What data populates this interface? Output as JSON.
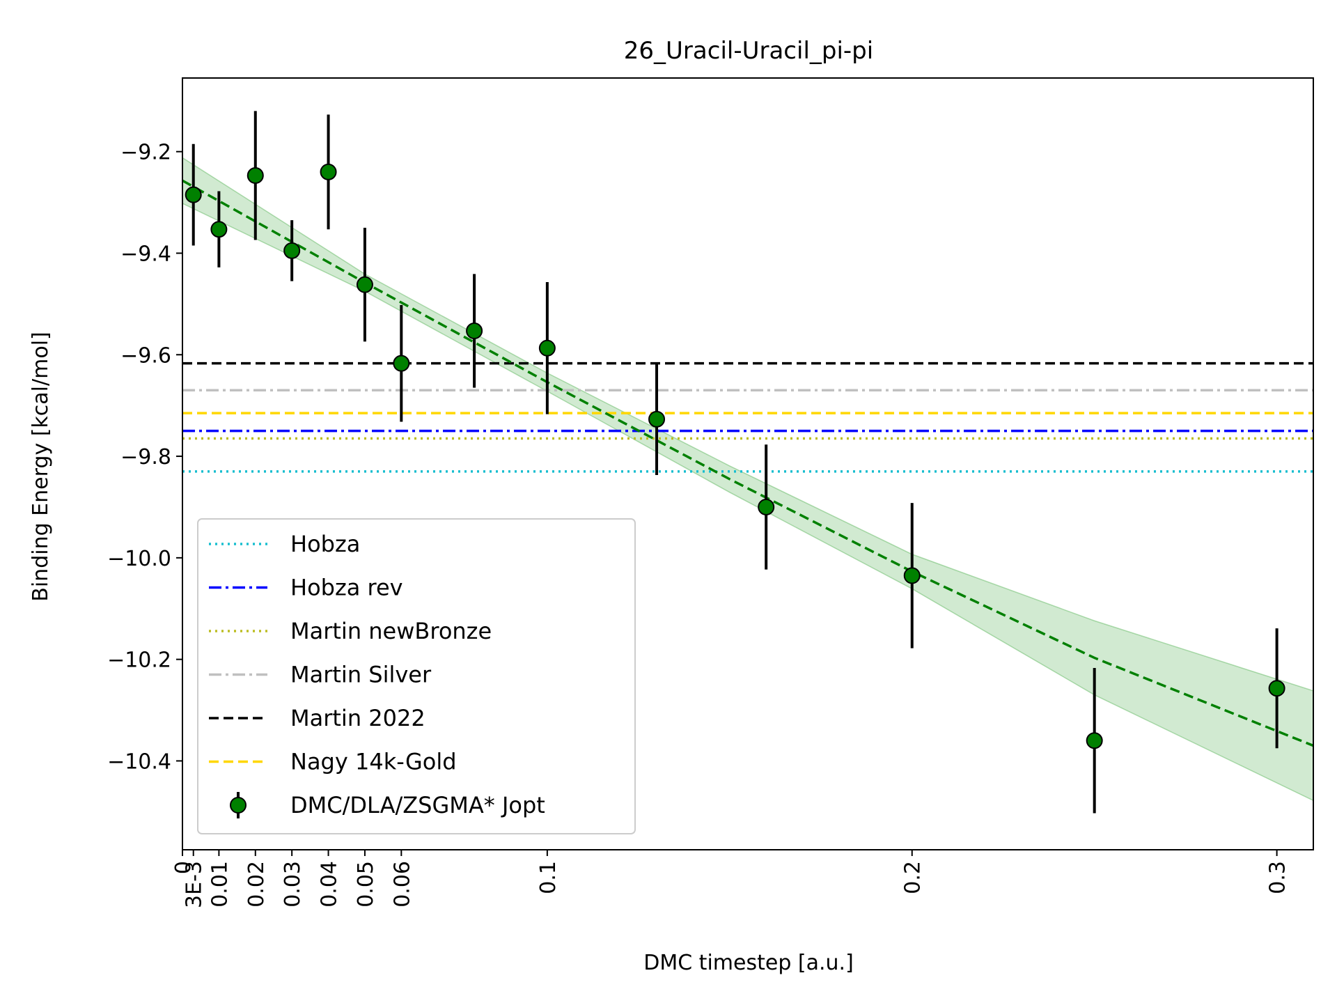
{
  "chart_data": {
    "type": "scatter",
    "title": "26_Uracil-Uracil_pi-pi",
    "xlabel": "DMC timestep [a.u.]",
    "ylabel": "Binding Energy [kcal/mol]",
    "xlim": [
      0,
      0.31
    ],
    "ylim": [
      -10.575,
      -9.055
    ],
    "x_ticks": [
      {
        "value": 0,
        "label": "0"
      },
      {
        "value": 0.003,
        "label": "3E-3"
      },
      {
        "value": 0.01,
        "label": "0.01"
      },
      {
        "value": 0.02,
        "label": "0.02"
      },
      {
        "value": 0.03,
        "label": "0.03"
      },
      {
        "value": 0.04,
        "label": "0.04"
      },
      {
        "value": 0.05,
        "label": "0.05"
      },
      {
        "value": 0.06,
        "label": "0.06"
      },
      {
        "value": 0.1,
        "label": "0.1"
      },
      {
        "value": 0.2,
        "label": "0.2"
      },
      {
        "value": 0.3,
        "label": "0.3"
      }
    ],
    "y_ticks": [
      {
        "value": -9.2,
        "label": "−9.2"
      },
      {
        "value": -9.4,
        "label": "−9.4"
      },
      {
        "value": -9.6,
        "label": "−9.6"
      },
      {
        "value": -9.8,
        "label": "−9.8"
      },
      {
        "value": -10.0,
        "label": "−10.0"
      },
      {
        "value": -10.2,
        "label": "−10.2"
      },
      {
        "value": -10.4,
        "label": "−10.4"
      }
    ],
    "reference_lines": [
      {
        "name": "Hobza",
        "y": -9.83,
        "color": "#17becf",
        "dash": "dotted"
      },
      {
        "name": "Hobza rev",
        "y": -9.75,
        "color": "#0000ff",
        "dash": "dashdot"
      },
      {
        "name": "Martin newBronze",
        "y": -9.765,
        "color": "#bcbd22",
        "dash": "dotted"
      },
      {
        "name": "Martin Silver",
        "y": -9.67,
        "color": "#c0c0c0",
        "dash": "dashdot"
      },
      {
        "name": "Martin 2022",
        "y": -9.617,
        "color": "#000000",
        "dash": "dashed"
      },
      {
        "name": "Nagy 14k-Gold",
        "y": -9.715,
        "color": "#ffd700",
        "dash": "dashed"
      }
    ],
    "series": [
      {
        "name": "DMC/DLA/ZSGMA* Jopt",
        "color": "#008000",
        "points": [
          {
            "x": 0.003,
            "y": -9.285,
            "err": 0.1
          },
          {
            "x": 0.01,
            "y": -9.353,
            "err": 0.075
          },
          {
            "x": 0.02,
            "y": -9.247,
            "err": 0.127
          },
          {
            "x": 0.03,
            "y": -9.395,
            "err": 0.06
          },
          {
            "x": 0.04,
            "y": -9.24,
            "err": 0.113
          },
          {
            "x": 0.05,
            "y": -9.462,
            "err": 0.112
          },
          {
            "x": 0.06,
            "y": -9.617,
            "err": 0.115
          },
          {
            "x": 0.08,
            "y": -9.553,
            "err": 0.112
          },
          {
            "x": 0.1,
            "y": -9.587,
            "err": 0.13
          },
          {
            "x": 0.13,
            "y": -9.727,
            "err": 0.11
          },
          {
            "x": 0.16,
            "y": -9.9,
            "err": 0.123
          },
          {
            "x": 0.2,
            "y": -10.035,
            "err": 0.143
          },
          {
            "x": 0.25,
            "y": -10.36,
            "err": 0.143
          },
          {
            "x": 0.3,
            "y": -10.257,
            "err": 0.118
          }
        ]
      }
    ],
    "fit": {
      "color": "#008000",
      "band_color": "#2ca02c",
      "x": [
        0,
        0.05,
        0.1,
        0.15,
        0.2,
        0.25,
        0.31
      ],
      "y": [
        -9.257,
        -9.458,
        -9.654,
        -9.845,
        -10.027,
        -10.197,
        -10.37
      ],
      "band_low": [
        -9.302,
        -9.475,
        -9.672,
        -9.871,
        -10.061,
        -10.27,
        -10.478
      ],
      "band_high": [
        -9.212,
        -9.441,
        -9.636,
        -9.819,
        -9.993,
        -10.124,
        -10.262
      ]
    },
    "legend": {
      "position": "lower-left",
      "order": [
        "Hobza",
        "Hobza rev",
        "Martin newBronze",
        "Martin Silver",
        "Martin 2022",
        "Nagy 14k-Gold",
        "DMC/DLA/ZSGMA* Jopt"
      ]
    },
    "grid": false
  }
}
